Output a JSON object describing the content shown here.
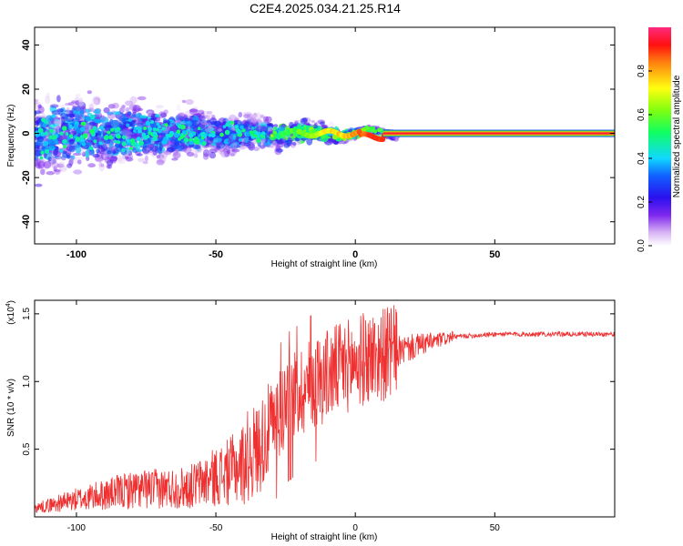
{
  "figure": {
    "title": "C2E4.2025.034.21.25.R14"
  },
  "chart_data": [
    {
      "type": "heatmap",
      "xlabel": "Height of straight line (km)",
      "ylabel": "Frequency (Hz)",
      "xlim": [
        -115,
        93
      ],
      "ylim": [
        -50,
        48
      ],
      "xticks": [
        -100,
        -50,
        0,
        50
      ],
      "yticks": [
        -40,
        -20,
        0,
        20,
        40
      ],
      "grid": false,
      "colorbar": {
        "label": "Normalized spectral amplitude",
        "range": [
          0.0,
          1.0
        ],
        "ticks": [
          "0.0",
          "0.2",
          "0.4",
          "0.6",
          "0.8"
        ],
        "tick_values": [
          0.0,
          0.2,
          0.4,
          0.6,
          0.8
        ]
      },
      "ridge": {
        "description_x_from": 10,
        "x_to": 93,
        "frequency": 0,
        "amplitude": 0.95
      }
    },
    {
      "type": "line",
      "xlabel": "Height of straight line (km)",
      "ylabel": "SNR (10 * v/v)",
      "y_multiplier": "(x10",
      "y_multiplier_exp": "4",
      "xlim": [
        -115,
        93
      ],
      "ylim": [
        0,
        1.6
      ],
      "xticks": [
        -100,
        -50,
        0,
        50
      ],
      "yticks": [
        0.5,
        1.0,
        1.5
      ],
      "ytick_labels": [
        "0.5",
        "1.0",
        "1.5"
      ],
      "grid": false,
      "series": [
        {
          "color": "#ee3030",
          "envelope_points": [
            {
              "x": -115,
              "y": 0.05
            },
            {
              "x": -100,
              "y": 0.12
            },
            {
              "x": -80,
              "y": 0.2
            },
            {
              "x": -60,
              "y": 0.22
            },
            {
              "x": -45,
              "y": 0.35
            },
            {
              "x": -35,
              "y": 0.5
            },
            {
              "x": -25,
              "y": 0.85
            },
            {
              "x": -15,
              "y": 1.0
            },
            {
              "x": -5,
              "y": 1.1
            },
            {
              "x": 5,
              "y": 1.18
            },
            {
              "x": 15,
              "y": 1.22
            },
            {
              "x": 25,
              "y": 1.28
            },
            {
              "x": 35,
              "y": 1.33
            },
            {
              "x": 50,
              "y": 1.35
            },
            {
              "x": 93,
              "y": 1.35
            }
          ]
        }
      ]
    }
  ]
}
